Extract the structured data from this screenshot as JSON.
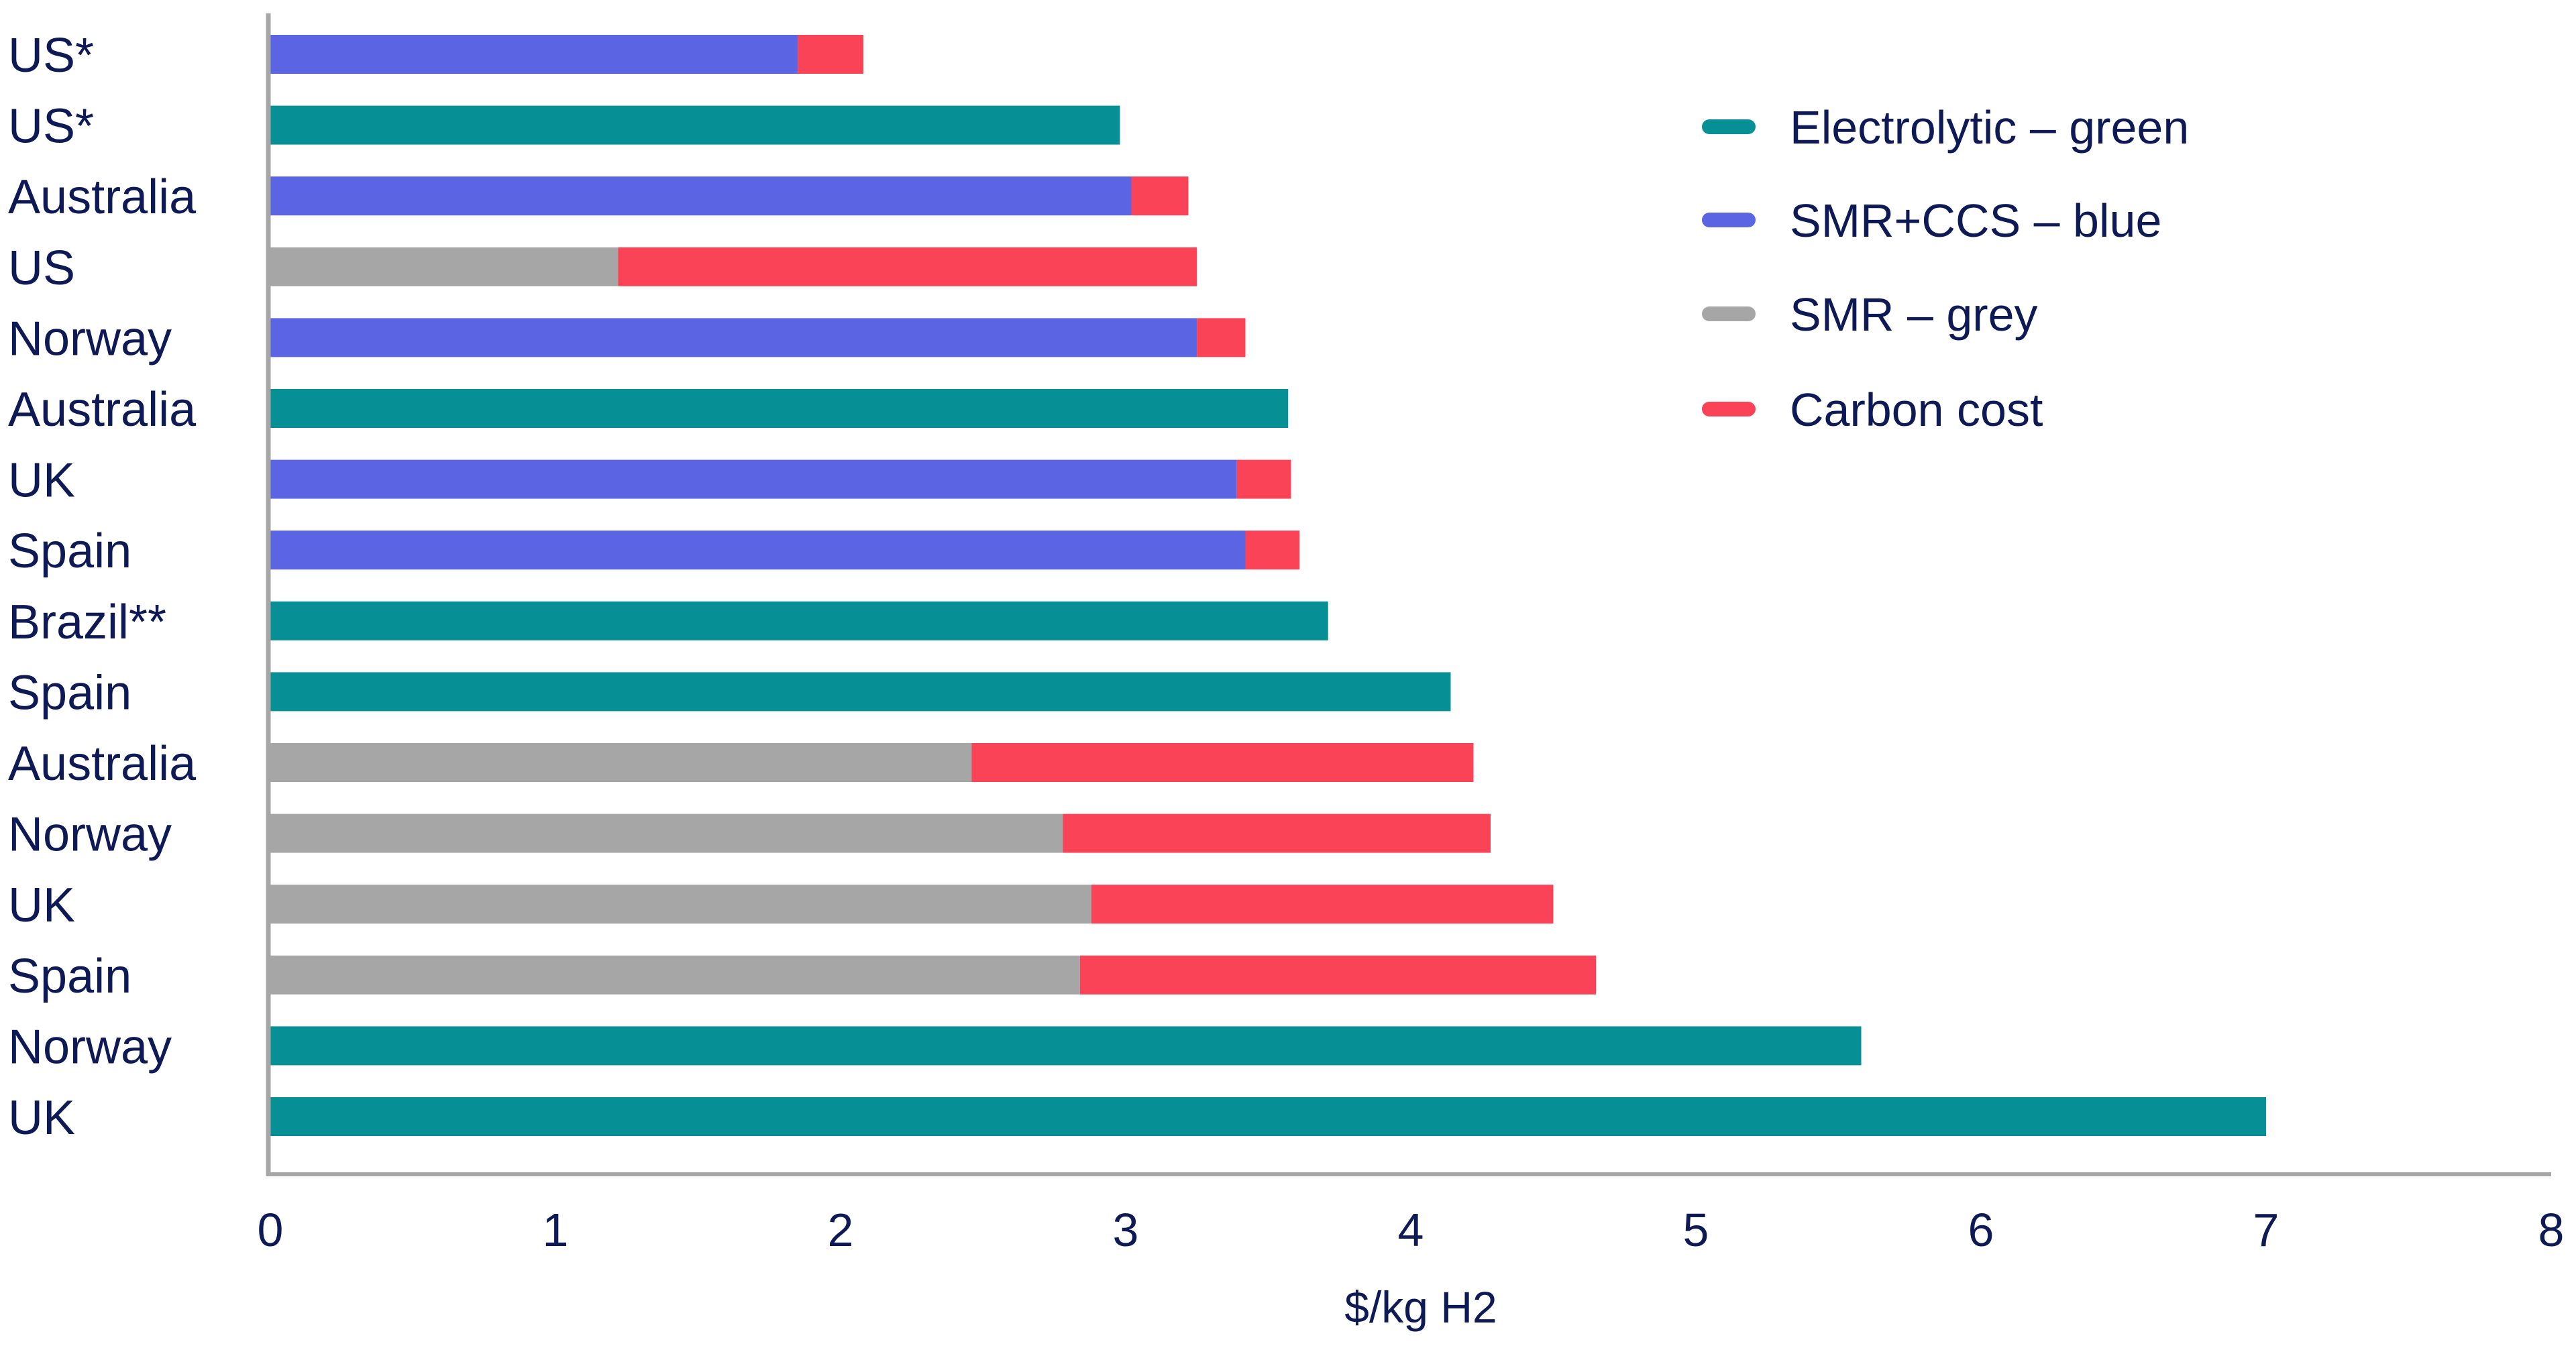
{
  "chart_data": {
    "type": "bar",
    "orientation": "horizontal",
    "stacked": true,
    "title": "",
    "xlabel": "$/kg H2",
    "ylabel": "",
    "xlim": [
      0,
      8
    ],
    "xticks": [
      "0",
      "1",
      "2",
      "3",
      "4",
      "5",
      "6",
      "7",
      "8"
    ],
    "grid": false,
    "legend_position": "top-right",
    "legend": [
      {
        "name": "Electrolytic – green",
        "color": "#069096"
      },
      {
        "name": "SMR+CCS – blue",
        "color": "#5b64e3"
      },
      {
        "name": "SMR – grey",
        "color": "#a6a6a6"
      },
      {
        "name": "Carbon cost",
        "color": "#fb4357"
      }
    ],
    "bars": [
      {
        "label": "US*",
        "type": "SMR+CCS – blue",
        "base": 1.85,
        "carbon": 0.23
      },
      {
        "label": "US*",
        "type": "Electrolytic – green",
        "base": 2.98,
        "carbon": 0
      },
      {
        "label": "Australia",
        "type": "SMR+CCS – blue",
        "base": 3.02,
        "carbon": 0.2
      },
      {
        "label": "US",
        "type": "SMR – grey",
        "base": 1.22,
        "carbon": 2.03
      },
      {
        "label": "Norway",
        "type": "SMR+CCS – blue",
        "base": 3.25,
        "carbon": 0.17
      },
      {
        "label": "Australia",
        "type": "Electrolytic – green",
        "base": 3.57,
        "carbon": 0
      },
      {
        "label": "UK",
        "type": "SMR+CCS – blue",
        "base": 3.39,
        "carbon": 0.19
      },
      {
        "label": "Spain",
        "type": "SMR+CCS – blue",
        "base": 3.42,
        "carbon": 0.19
      },
      {
        "label": "Brazil**",
        "type": "Electrolytic – green",
        "base": 3.71,
        "carbon": 0
      },
      {
        "label": "Spain",
        "type": "Electrolytic – green",
        "base": 4.14,
        "carbon": 0
      },
      {
        "label": "Australia",
        "type": "SMR – grey",
        "base": 2.46,
        "carbon": 1.76
      },
      {
        "label": "Norway",
        "type": "SMR – grey",
        "base": 2.78,
        "carbon": 1.5
      },
      {
        "label": "UK",
        "type": "SMR – grey",
        "base": 2.88,
        "carbon": 1.62
      },
      {
        "label": "Spain",
        "type": "SMR – grey",
        "base": 2.84,
        "carbon": 1.81
      },
      {
        "label": "Norway",
        "type": "Electrolytic – green",
        "base": 5.58,
        "carbon": 0
      },
      {
        "label": "UK",
        "type": "Electrolytic – green",
        "base": 7.0,
        "carbon": 0
      }
    ],
    "axis_color": "#a6a6a6"
  }
}
